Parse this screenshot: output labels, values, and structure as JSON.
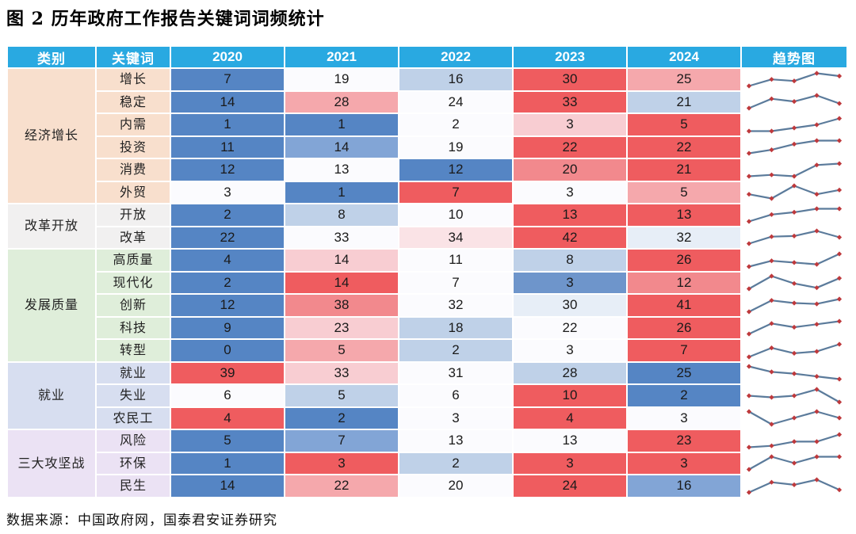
{
  "header": {
    "title": "图 2 历年政府工作报告关键词词频统计"
  },
  "footer": {
    "source": "数据来源：中国政府网，国泰君安证券研究"
  },
  "theme": {
    "header_bg": "#29A9E1",
    "header_text": "#FFFFFF",
    "grid_color": "#FFFFFF",
    "sparkline_line": "#5B7B9B",
    "sparkline_marker": "#BE393C",
    "palette": {
      "b3": "#5585C4",
      "b25": "#6E95CB",
      "b2": "#82A5D6",
      "b1": "#BFD1E8",
      "b05": "#E7EEF7",
      "w": "#FBFBFE",
      "r05": "#FAE3E6",
      "r1": "#F8CDD2",
      "r2": "#F5A8AC",
      "r25": "#F2898D",
      "r3": "#EF5C5F"
    }
  },
  "chart_data": {
    "type": "table",
    "title": "图 2 历年政府工作报告关键词词频统计",
    "columns": [
      "类别",
      "关键词",
      "2020",
      "2021",
      "2022",
      "2023",
      "2024",
      "趋势图"
    ],
    "years": [
      "2020",
      "2021",
      "2022",
      "2023",
      "2024"
    ],
    "trend_column_note": "sparkline of each keyword's 2020-2024 values, red diamond markers on slate line",
    "categories": [
      {
        "name": "经济增长",
        "bg": "#F8DFCD",
        "rows": [
          {
            "keyword": "增长",
            "values": [
              7,
              19,
              16,
              30,
              25
            ],
            "cell_colors": [
              "b3",
              "w",
              "b1",
              "r3",
              "r2"
            ]
          },
          {
            "keyword": "稳定",
            "values": [
              14,
              28,
              24,
              33,
              21
            ],
            "cell_colors": [
              "b3",
              "r2",
              "w",
              "r3",
              "b1"
            ]
          },
          {
            "keyword": "内需",
            "values": [
              1,
              1,
              2,
              3,
              5
            ],
            "cell_colors": [
              "b3",
              "b3",
              "w",
              "r1",
              "r3"
            ]
          },
          {
            "keyword": "投资",
            "values": [
              11,
              14,
              19,
              22,
              22
            ],
            "cell_colors": [
              "b3",
              "b2",
              "w",
              "r3",
              "r3"
            ]
          },
          {
            "keyword": "消费",
            "values": [
              12,
              13,
              12,
              20,
              21
            ],
            "cell_colors": [
              "b3",
              "w",
              "b3",
              "r25",
              "r3"
            ]
          },
          {
            "keyword": "外贸",
            "values": [
              3,
              1,
              7,
              3,
              5
            ],
            "cell_colors": [
              "w",
              "b3",
              "r3",
              "w",
              "r2"
            ]
          }
        ]
      },
      {
        "name": "改革开放",
        "bg": "#F1F0F0",
        "rows": [
          {
            "keyword": "开放",
            "values": [
              2,
              8,
              10,
              13,
              13
            ],
            "cell_colors": [
              "b3",
              "b1",
              "w",
              "r3",
              "r3"
            ]
          },
          {
            "keyword": "改革",
            "values": [
              22,
              33,
              34,
              42,
              32
            ],
            "cell_colors": [
              "b3",
              "w",
              "r05",
              "r3",
              "b05"
            ]
          }
        ]
      },
      {
        "name": "发展质量",
        "bg": "#DFEEDA",
        "rows": [
          {
            "keyword": "高质量",
            "values": [
              4,
              14,
              11,
              8,
              26
            ],
            "cell_colors": [
              "b3",
              "r1",
              "w",
              "b1",
              "r3"
            ]
          },
          {
            "keyword": "现代化",
            "values": [
              2,
              14,
              7,
              3,
              12
            ],
            "cell_colors": [
              "b3",
              "r3",
              "w",
              "b25",
              "r25"
            ]
          },
          {
            "keyword": "创新",
            "values": [
              12,
              38,
              32,
              30,
              41
            ],
            "cell_colors": [
              "b3",
              "r25",
              "w",
              "b05",
              "r3"
            ]
          },
          {
            "keyword": "科技",
            "values": [
              9,
              23,
              18,
              22,
              26
            ],
            "cell_colors": [
              "b3",
              "r1",
              "b1",
              "w",
              "r3"
            ]
          },
          {
            "keyword": "转型",
            "values": [
              0,
              5,
              2,
              3,
              7
            ],
            "cell_colors": [
              "b3",
              "r2",
              "b1",
              "w",
              "r3"
            ]
          }
        ]
      },
      {
        "name": "就业",
        "bg": "#D7DEF0",
        "rows": [
          {
            "keyword": "就业",
            "values": [
              39,
              33,
              31,
              28,
              25
            ],
            "cell_colors": [
              "r3",
              "r1",
              "w",
              "b1",
              "b3"
            ]
          },
          {
            "keyword": "失业",
            "values": [
              6,
              5,
              6,
              10,
              2
            ],
            "cell_colors": [
              "w",
              "b1",
              "w",
              "r3",
              "b3"
            ]
          },
          {
            "keyword": "农民工",
            "values": [
              4,
              2,
              3,
              4,
              3
            ],
            "cell_colors": [
              "r3",
              "b3",
              "w",
              "r3",
              "w"
            ]
          }
        ]
      },
      {
        "name": "三大攻坚战",
        "bg": "#EBE2F4",
        "rows": [
          {
            "keyword": "风险",
            "values": [
              5,
              7,
              13,
              13,
              23
            ],
            "cell_colors": [
              "b3",
              "b2",
              "w",
              "w",
              "r3"
            ]
          },
          {
            "keyword": "环保",
            "values": [
              1,
              3,
              2,
              3,
              3
            ],
            "cell_colors": [
              "b3",
              "r3",
              "b1",
              "r3",
              "r3"
            ]
          },
          {
            "keyword": "民生",
            "values": [
              14,
              22,
              20,
              24,
              16
            ],
            "cell_colors": [
              "b3",
              "r2",
              "w",
              "r3",
              "b2"
            ]
          }
        ]
      }
    ]
  }
}
